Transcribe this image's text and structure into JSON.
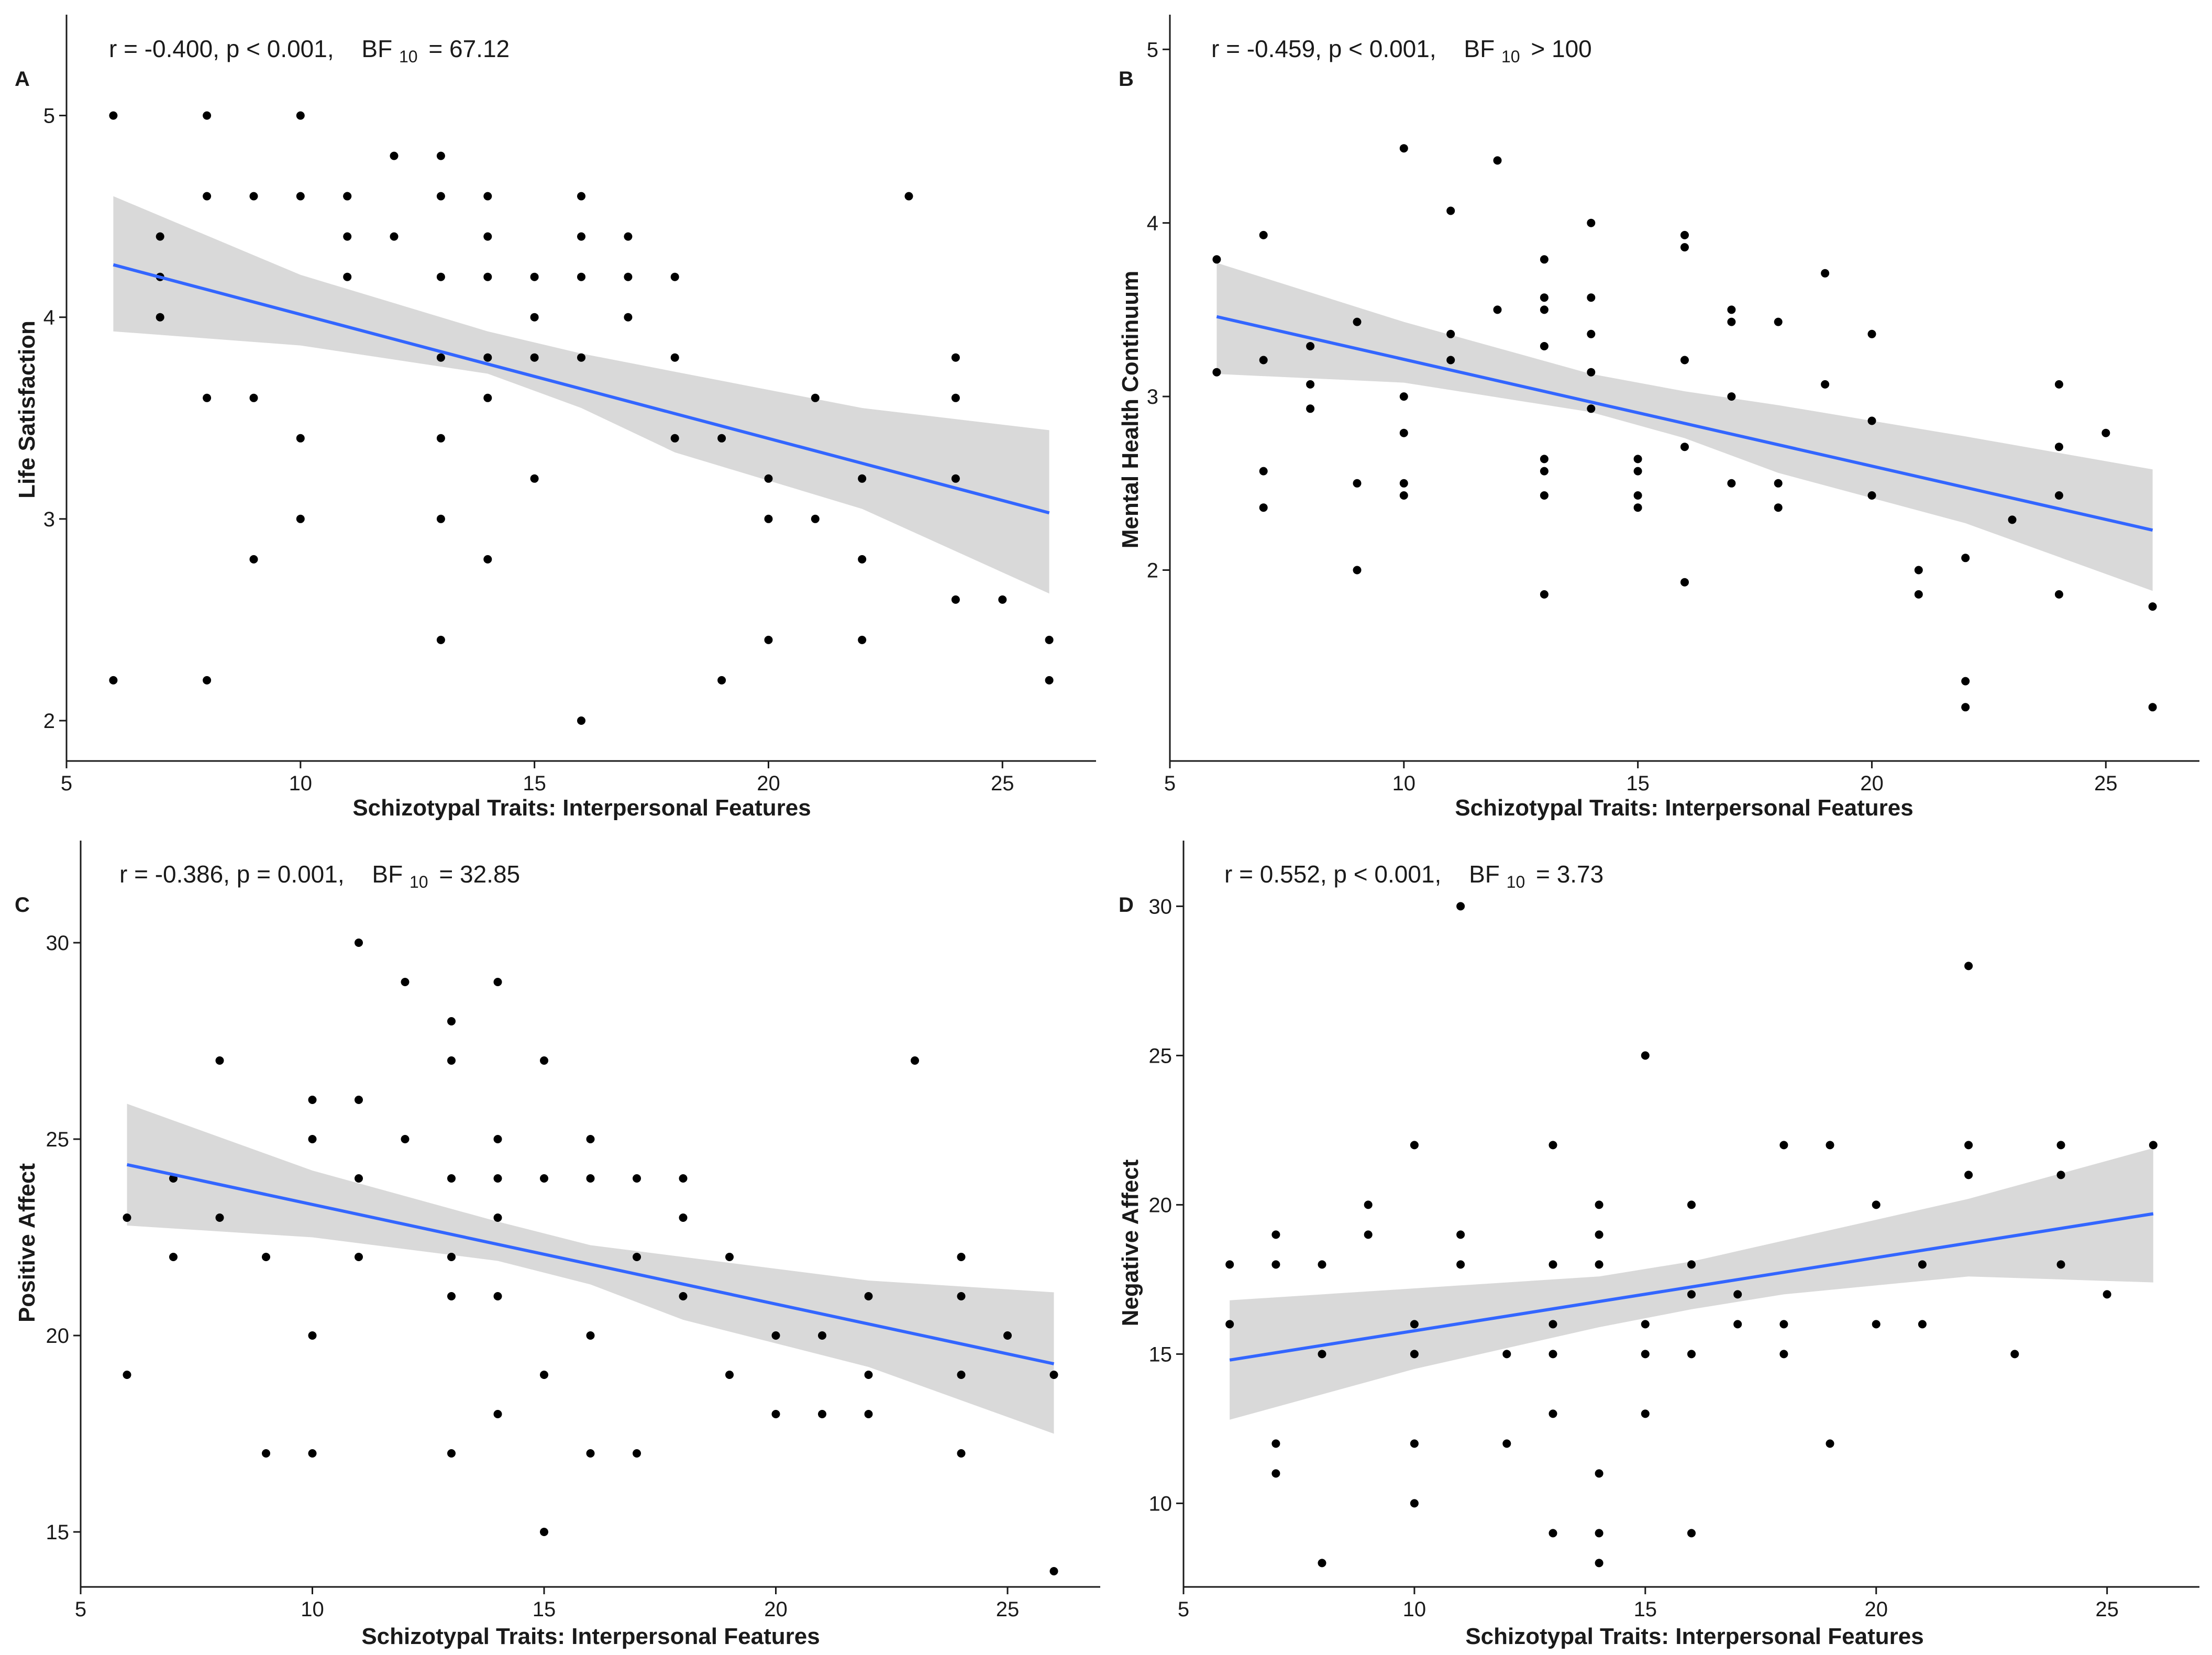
{
  "figure": {
    "panels": [
      {
        "id": "A",
        "stats": {
          "text": "r = -0.400, p < 0.001,",
          "bf_label": "BF",
          "bf_sub": "10",
          "bf_value": "= 67.12"
        }
      },
      {
        "id": "B",
        "stats": {
          "text": "r = -0.459, p < 0.001,",
          "bf_label": "BF",
          "bf_sub": "10",
          "bf_value": "> 100"
        }
      },
      {
        "id": "C",
        "stats": {
          "text": "r = -0.386, p = 0.001,",
          "bf_label": "BF",
          "bf_sub": "10",
          "bf_value": "= 32.85"
        }
      },
      {
        "id": "D",
        "stats": {
          "text": "r = 0.552, p < 0.001,",
          "bf_label": "BF",
          "bf_sub": "10",
          "bf_value": "= 3.73"
        }
      }
    ]
  },
  "colors": {
    "point": "#000000",
    "regression_line": "#3366FF",
    "confidence_band": "#D9D9D9",
    "axis": "#1a1a1a"
  },
  "chart_data": [
    {
      "type": "scatter",
      "panel": "A",
      "title": "",
      "xlabel": "Schizotypal Traits: Interpersonal Features",
      "ylabel": "Life Satisfaction",
      "xlim": [
        5,
        27
      ],
      "ylim": [
        1.8,
        5.5
      ],
      "xticks": [
        5,
        10,
        15,
        20,
        25
      ],
      "yticks": [
        2,
        3,
        4,
        5
      ],
      "points": [
        [
          6,
          5.0
        ],
        [
          6,
          2.2
        ],
        [
          7,
          4.4
        ],
        [
          7,
          4.2
        ],
        [
          7,
          4.0
        ],
        [
          8,
          5.0
        ],
        [
          8,
          4.6
        ],
        [
          8,
          3.6
        ],
        [
          8,
          2.2
        ],
        [
          9,
          4.6
        ],
        [
          9,
          3.6
        ],
        [
          9,
          2.8
        ],
        [
          10,
          5.0
        ],
        [
          10,
          4.6
        ],
        [
          10,
          3.4
        ],
        [
          10,
          3.0
        ],
        [
          11,
          4.6
        ],
        [
          11,
          4.6
        ],
        [
          11,
          4.4
        ],
        [
          11,
          4.2
        ],
        [
          12,
          4.8
        ],
        [
          12,
          4.4
        ],
        [
          13,
          4.8
        ],
        [
          13,
          4.6
        ],
        [
          13,
          4.2
        ],
        [
          13,
          3.8
        ],
        [
          13,
          3.4
        ],
        [
          13,
          3.0
        ],
        [
          13,
          2.4
        ],
        [
          14,
          4.6
        ],
        [
          14,
          4.4
        ],
        [
          14,
          4.2
        ],
        [
          14,
          3.8
        ],
        [
          14,
          3.6
        ],
        [
          14,
          2.8
        ],
        [
          15,
          4.2
        ],
        [
          15,
          4.0
        ],
        [
          15,
          3.8
        ],
        [
          15,
          3.2
        ],
        [
          16,
          4.6
        ],
        [
          16,
          4.4
        ],
        [
          16,
          4.2
        ],
        [
          16,
          3.8
        ],
        [
          16,
          2.0
        ],
        [
          17,
          4.4
        ],
        [
          17,
          4.2
        ],
        [
          17,
          4.0
        ],
        [
          18,
          4.2
        ],
        [
          18,
          3.8
        ],
        [
          18,
          3.4
        ],
        [
          19,
          3.4
        ],
        [
          19,
          2.2
        ],
        [
          20,
          3.2
        ],
        [
          20,
          3.0
        ],
        [
          20,
          2.4
        ],
        [
          21,
          3.6
        ],
        [
          21,
          3.0
        ],
        [
          22,
          3.2
        ],
        [
          22,
          2.8
        ],
        [
          22,
          2.4
        ],
        [
          23,
          4.6
        ],
        [
          24,
          3.8
        ],
        [
          24,
          3.6
        ],
        [
          24,
          3.2
        ],
        [
          24,
          2.6
        ],
        [
          25,
          2.6
        ],
        [
          26,
          2.4
        ],
        [
          26,
          2.2
        ]
      ],
      "regression": {
        "x": [
          6,
          26
        ],
        "y": [
          4.26,
          3.03
        ]
      },
      "ci_band": {
        "x": [
          6,
          10,
          14,
          16,
          18,
          22,
          26
        ],
        "lower": [
          3.93,
          3.86,
          3.72,
          3.55,
          3.33,
          3.05,
          2.63
        ],
        "upper": [
          4.6,
          4.21,
          3.93,
          3.82,
          3.73,
          3.55,
          3.44
        ]
      }
    },
    {
      "type": "scatter",
      "panel": "B",
      "title": "",
      "xlabel": "Schizotypal Traits: Interpersonal Features",
      "ylabel": "Mental Health Continuum",
      "xlim": [
        5,
        27
      ],
      "ylim": [
        0.9,
        5.2
      ],
      "xticks": [
        5,
        10,
        15,
        20,
        25
      ],
      "yticks": [
        2,
        3,
        4,
        5
      ],
      "points": [
        [
          6,
          3.79
        ],
        [
          6,
          3.14
        ],
        [
          7,
          3.93
        ],
        [
          7,
          3.21
        ],
        [
          7,
          2.57
        ],
        [
          7,
          2.36
        ],
        [
          8,
          3.29
        ],
        [
          8,
          3.07
        ],
        [
          8,
          2.93
        ],
        [
          9,
          3.43
        ],
        [
          9,
          2.5
        ],
        [
          9,
          2.0
        ],
        [
          10,
          4.43
        ],
        [
          10,
          3.0
        ],
        [
          10,
          2.79
        ],
        [
          10,
          2.5
        ],
        [
          10,
          2.43
        ],
        [
          11,
          4.07
        ],
        [
          11,
          3.36
        ],
        [
          11,
          3.21
        ],
        [
          12,
          4.36
        ],
        [
          12,
          3.5
        ],
        [
          13,
          3.79
        ],
        [
          13,
          3.57
        ],
        [
          13,
          3.5
        ],
        [
          13,
          3.29
        ],
        [
          13,
          2.64
        ],
        [
          13,
          2.57
        ],
        [
          13,
          2.43
        ],
        [
          13,
          1.86
        ],
        [
          14,
          4.0
        ],
        [
          14,
          3.57
        ],
        [
          14,
          3.36
        ],
        [
          14,
          3.14
        ],
        [
          14,
          2.93
        ],
        [
          15,
          2.64
        ],
        [
          15,
          2.57
        ],
        [
          15,
          2.43
        ],
        [
          15,
          2.36
        ],
        [
          16,
          3.93
        ],
        [
          16,
          3.86
        ],
        [
          16,
          3.21
        ],
        [
          16,
          2.71
        ],
        [
          16,
          1.93
        ],
        [
          17,
          3.5
        ],
        [
          17,
          3.43
        ],
        [
          17,
          3.0
        ],
        [
          17,
          2.5
        ],
        [
          18,
          3.43
        ],
        [
          18,
          2.5
        ],
        [
          18,
          2.36
        ],
        [
          19,
          3.71
        ],
        [
          19,
          3.07
        ],
        [
          20,
          3.36
        ],
        [
          20,
          2.86
        ],
        [
          20,
          2.43
        ],
        [
          21,
          2.0
        ],
        [
          21,
          1.86
        ],
        [
          22,
          2.07
        ],
        [
          22,
          1.36
        ],
        [
          22,
          1.21
        ],
        [
          23,
          2.29
        ],
        [
          24,
          3.07
        ],
        [
          24,
          2.71
        ],
        [
          24,
          2.43
        ],
        [
          24,
          1.86
        ],
        [
          25,
          2.79
        ],
        [
          26,
          1.79
        ],
        [
          26,
          1.21
        ]
      ],
      "regression": {
        "x": [
          6,
          26
        ],
        "y": [
          3.46,
          2.23
        ]
      },
      "ci_band": {
        "x": [
          6,
          10,
          14,
          16,
          18,
          22,
          26
        ],
        "lower": [
          3.13,
          3.08,
          2.91,
          2.76,
          2.56,
          2.27,
          1.88
        ],
        "upper": [
          3.77,
          3.43,
          3.13,
          3.03,
          2.95,
          2.77,
          2.58
        ]
      }
    },
    {
      "type": "scatter",
      "panel": "C",
      "title": "",
      "xlabel": "Schizotypal Traits: Interpersonal Features",
      "ylabel": "Positive Affect",
      "xlim": [
        5,
        27
      ],
      "ylim": [
        13.6,
        32.6
      ],
      "xticks": [
        5,
        10,
        15,
        20,
        25
      ],
      "yticks": [
        15,
        20,
        25,
        30
      ],
      "points": [
        [
          6,
          23
        ],
        [
          6,
          19
        ],
        [
          7,
          24
        ],
        [
          7,
          22
        ],
        [
          8,
          27
        ],
        [
          8,
          23
        ],
        [
          9,
          22
        ],
        [
          9,
          17
        ],
        [
          10,
          26
        ],
        [
          10,
          25
        ],
        [
          10,
          20
        ],
        [
          10,
          17
        ],
        [
          11,
          30
        ],
        [
          11,
          26
        ],
        [
          11,
          24
        ],
        [
          11,
          22
        ],
        [
          12,
          29
        ],
        [
          12,
          25
        ],
        [
          13,
          28
        ],
        [
          13,
          27
        ],
        [
          13,
          24
        ],
        [
          13,
          22
        ],
        [
          13,
          21
        ],
        [
          13,
          17
        ],
        [
          14,
          29
        ],
        [
          14,
          25
        ],
        [
          14,
          24
        ],
        [
          14,
          23
        ],
        [
          14,
          21
        ],
        [
          14,
          18
        ],
        [
          15,
          27
        ],
        [
          15,
          24
        ],
        [
          15,
          19
        ],
        [
          15,
          15
        ],
        [
          16,
          25
        ],
        [
          16,
          24
        ],
        [
          16,
          20
        ],
        [
          16,
          17
        ],
        [
          17,
          24
        ],
        [
          17,
          22
        ],
        [
          17,
          17
        ],
        [
          18,
          24
        ],
        [
          18,
          23
        ],
        [
          18,
          21
        ],
        [
          19,
          22
        ],
        [
          19,
          19
        ],
        [
          20,
          20
        ],
        [
          20,
          18
        ],
        [
          21,
          20
        ],
        [
          21,
          18
        ],
        [
          22,
          21
        ],
        [
          22,
          19
        ],
        [
          22,
          18
        ],
        [
          23,
          27
        ],
        [
          24,
          22
        ],
        [
          24,
          21
        ],
        [
          24,
          19
        ],
        [
          24,
          17
        ],
        [
          25,
          20
        ],
        [
          26,
          19
        ],
        [
          26,
          14
        ]
      ],
      "regression": {
        "x": [
          6,
          26
        ],
        "y": [
          24.35,
          19.28
        ]
      },
      "ci_band": {
        "x": [
          6,
          10,
          14,
          16,
          18,
          22,
          26
        ],
        "lower": [
          22.8,
          22.5,
          21.9,
          21.3,
          20.4,
          19.2,
          17.5
        ],
        "upper": [
          25.9,
          24.2,
          22.9,
          22.3,
          22.0,
          21.4,
          21.1
        ]
      }
    },
    {
      "type": "scatter",
      "panel": "D",
      "title": "",
      "xlabel": "Schizotypal Traits: Interpersonal Features",
      "ylabel": "Negative Affect",
      "xlim": [
        5,
        27
      ],
      "ylim": [
        7.2,
        32.2
      ],
      "xticks": [
        5,
        10,
        15,
        20,
        25
      ],
      "yticks": [
        10,
        15,
        20,
        25,
        30
      ],
      "points": [
        [
          6,
          18
        ],
        [
          6,
          16
        ],
        [
          7,
          19
        ],
        [
          7,
          18
        ],
        [
          7,
          12
        ],
        [
          7,
          11
        ],
        [
          8,
          18
        ],
        [
          8,
          15
        ],
        [
          8,
          8
        ],
        [
          9,
          20
        ],
        [
          9,
          19
        ],
        [
          10,
          22
        ],
        [
          10,
          16
        ],
        [
          10,
          15
        ],
        [
          10,
          12
        ],
        [
          10,
          10
        ],
        [
          11,
          30
        ],
        [
          11,
          19
        ],
        [
          11,
          18
        ],
        [
          12,
          15
        ],
        [
          12,
          12
        ],
        [
          13,
          22
        ],
        [
          13,
          18
        ],
        [
          13,
          16
        ],
        [
          13,
          15
        ],
        [
          13,
          13
        ],
        [
          13,
          9
        ],
        [
          14,
          20
        ],
        [
          14,
          19
        ],
        [
          14,
          18
        ],
        [
          14,
          11
        ],
        [
          14,
          9
        ],
        [
          14,
          8
        ],
        [
          15,
          25
        ],
        [
          15,
          16
        ],
        [
          15,
          15
        ],
        [
          15,
          13
        ],
        [
          16,
          20
        ],
        [
          16,
          18
        ],
        [
          16,
          17
        ],
        [
          16,
          15
        ],
        [
          16,
          9
        ],
        [
          17,
          17
        ],
        [
          17,
          16
        ],
        [
          18,
          22
        ],
        [
          18,
          16
        ],
        [
          18,
          15
        ],
        [
          19,
          22
        ],
        [
          19,
          12
        ],
        [
          20,
          20
        ],
        [
          20,
          16
        ],
        [
          21,
          18
        ],
        [
          21,
          16
        ],
        [
          22,
          28
        ],
        [
          22,
          22
        ],
        [
          22,
          21
        ],
        [
          23,
          15
        ],
        [
          24,
          22
        ],
        [
          24,
          21
        ],
        [
          24,
          18
        ],
        [
          25,
          17
        ],
        [
          26,
          22
        ]
      ],
      "regression": {
        "x": [
          6,
          26
        ],
        "y": [
          14.8,
          19.7
        ]
      },
      "ci_band": {
        "x": [
          6,
          10,
          14,
          16,
          18,
          22,
          26
        ],
        "lower": [
          12.8,
          14.5,
          15.9,
          16.5,
          17.0,
          17.6,
          17.4
        ],
        "upper": [
          16.8,
          17.2,
          17.6,
          18.1,
          18.8,
          20.2,
          21.9
        ]
      }
    }
  ]
}
